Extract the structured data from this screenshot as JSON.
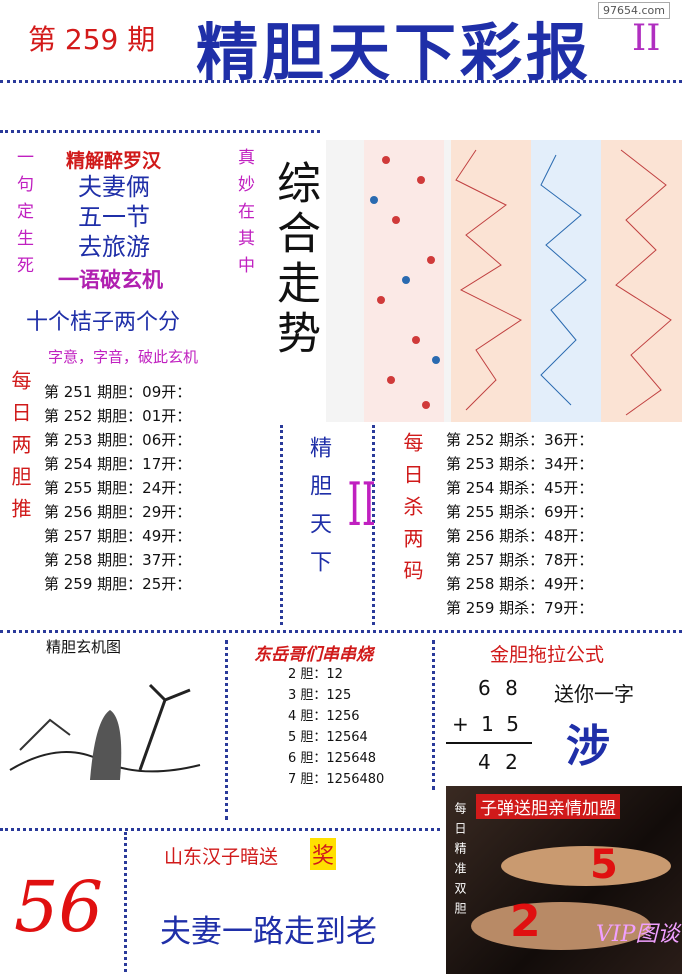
{
  "header": {
    "issue": "第 259 期",
    "title": "精胆天下彩报",
    "edition": "II",
    "watermark": "97654.com"
  },
  "riddle": {
    "side_left": "一句定生死",
    "side_right": "真妙在其中",
    "title": "精解醉罗汉",
    "lines": [
      "夫妻俩",
      "五一节",
      "去旅游"
    ],
    "tagline": "一语破玄机",
    "answer_hint": "十个桔子两个分",
    "note": "字意，字音，破此玄机"
  },
  "trend": {
    "label": "综合走势"
  },
  "daily_dan": {
    "label": "每日两胆推",
    "rows": [
      "第 251 期胆：09开：",
      "第 252 期胆：01开：",
      "第 253 期胆：06开：",
      "第 254 期胆：17开：",
      "第 255 期胆：24开：",
      "第 256 期胆：29开：",
      "第 257 期胆：49开：",
      "第 258 期胆：37开：",
      "第 259 期胆：25开："
    ]
  },
  "center_banner": {
    "text": "精胆天下",
    "mark": "II"
  },
  "daily_kill": {
    "label": "每日杀两码",
    "rows": [
      "第 252 期杀：36开：",
      "第 253 期杀：34开：",
      "第 254 期杀：45开：",
      "第 255 期杀：69开：",
      "第 256 期杀：48开：",
      "第 257 期杀：78开：",
      "第 258 期杀：49开：",
      "第 259 期杀：79开："
    ]
  },
  "picture": {
    "title": "精胆玄机图"
  },
  "skewer": {
    "title": "东岳哥们串串烧",
    "rows": [
      "2 胆：12",
      "3 胆：125",
      "4 胆：1256",
      "5 胆：12564",
      "6 胆：125648",
      "7 胆：1256480"
    ]
  },
  "formula": {
    "title": "金胆拖拉公式",
    "top": "6 8",
    "middle": "+ 1 5",
    "result": "4 2",
    "gift_label": "送你一字",
    "gift_char": "涉"
  },
  "bottom": {
    "sender": "山东汉子暗送",
    "award": "奖",
    "handwritten": "56",
    "slogan": "夫妻一路走到老"
  },
  "promo": {
    "title": "子弹送胆亲情加盟",
    "side": "每日精准双胆",
    "num_a": "5",
    "num_b": "2",
    "brand": "VIP图谈"
  }
}
